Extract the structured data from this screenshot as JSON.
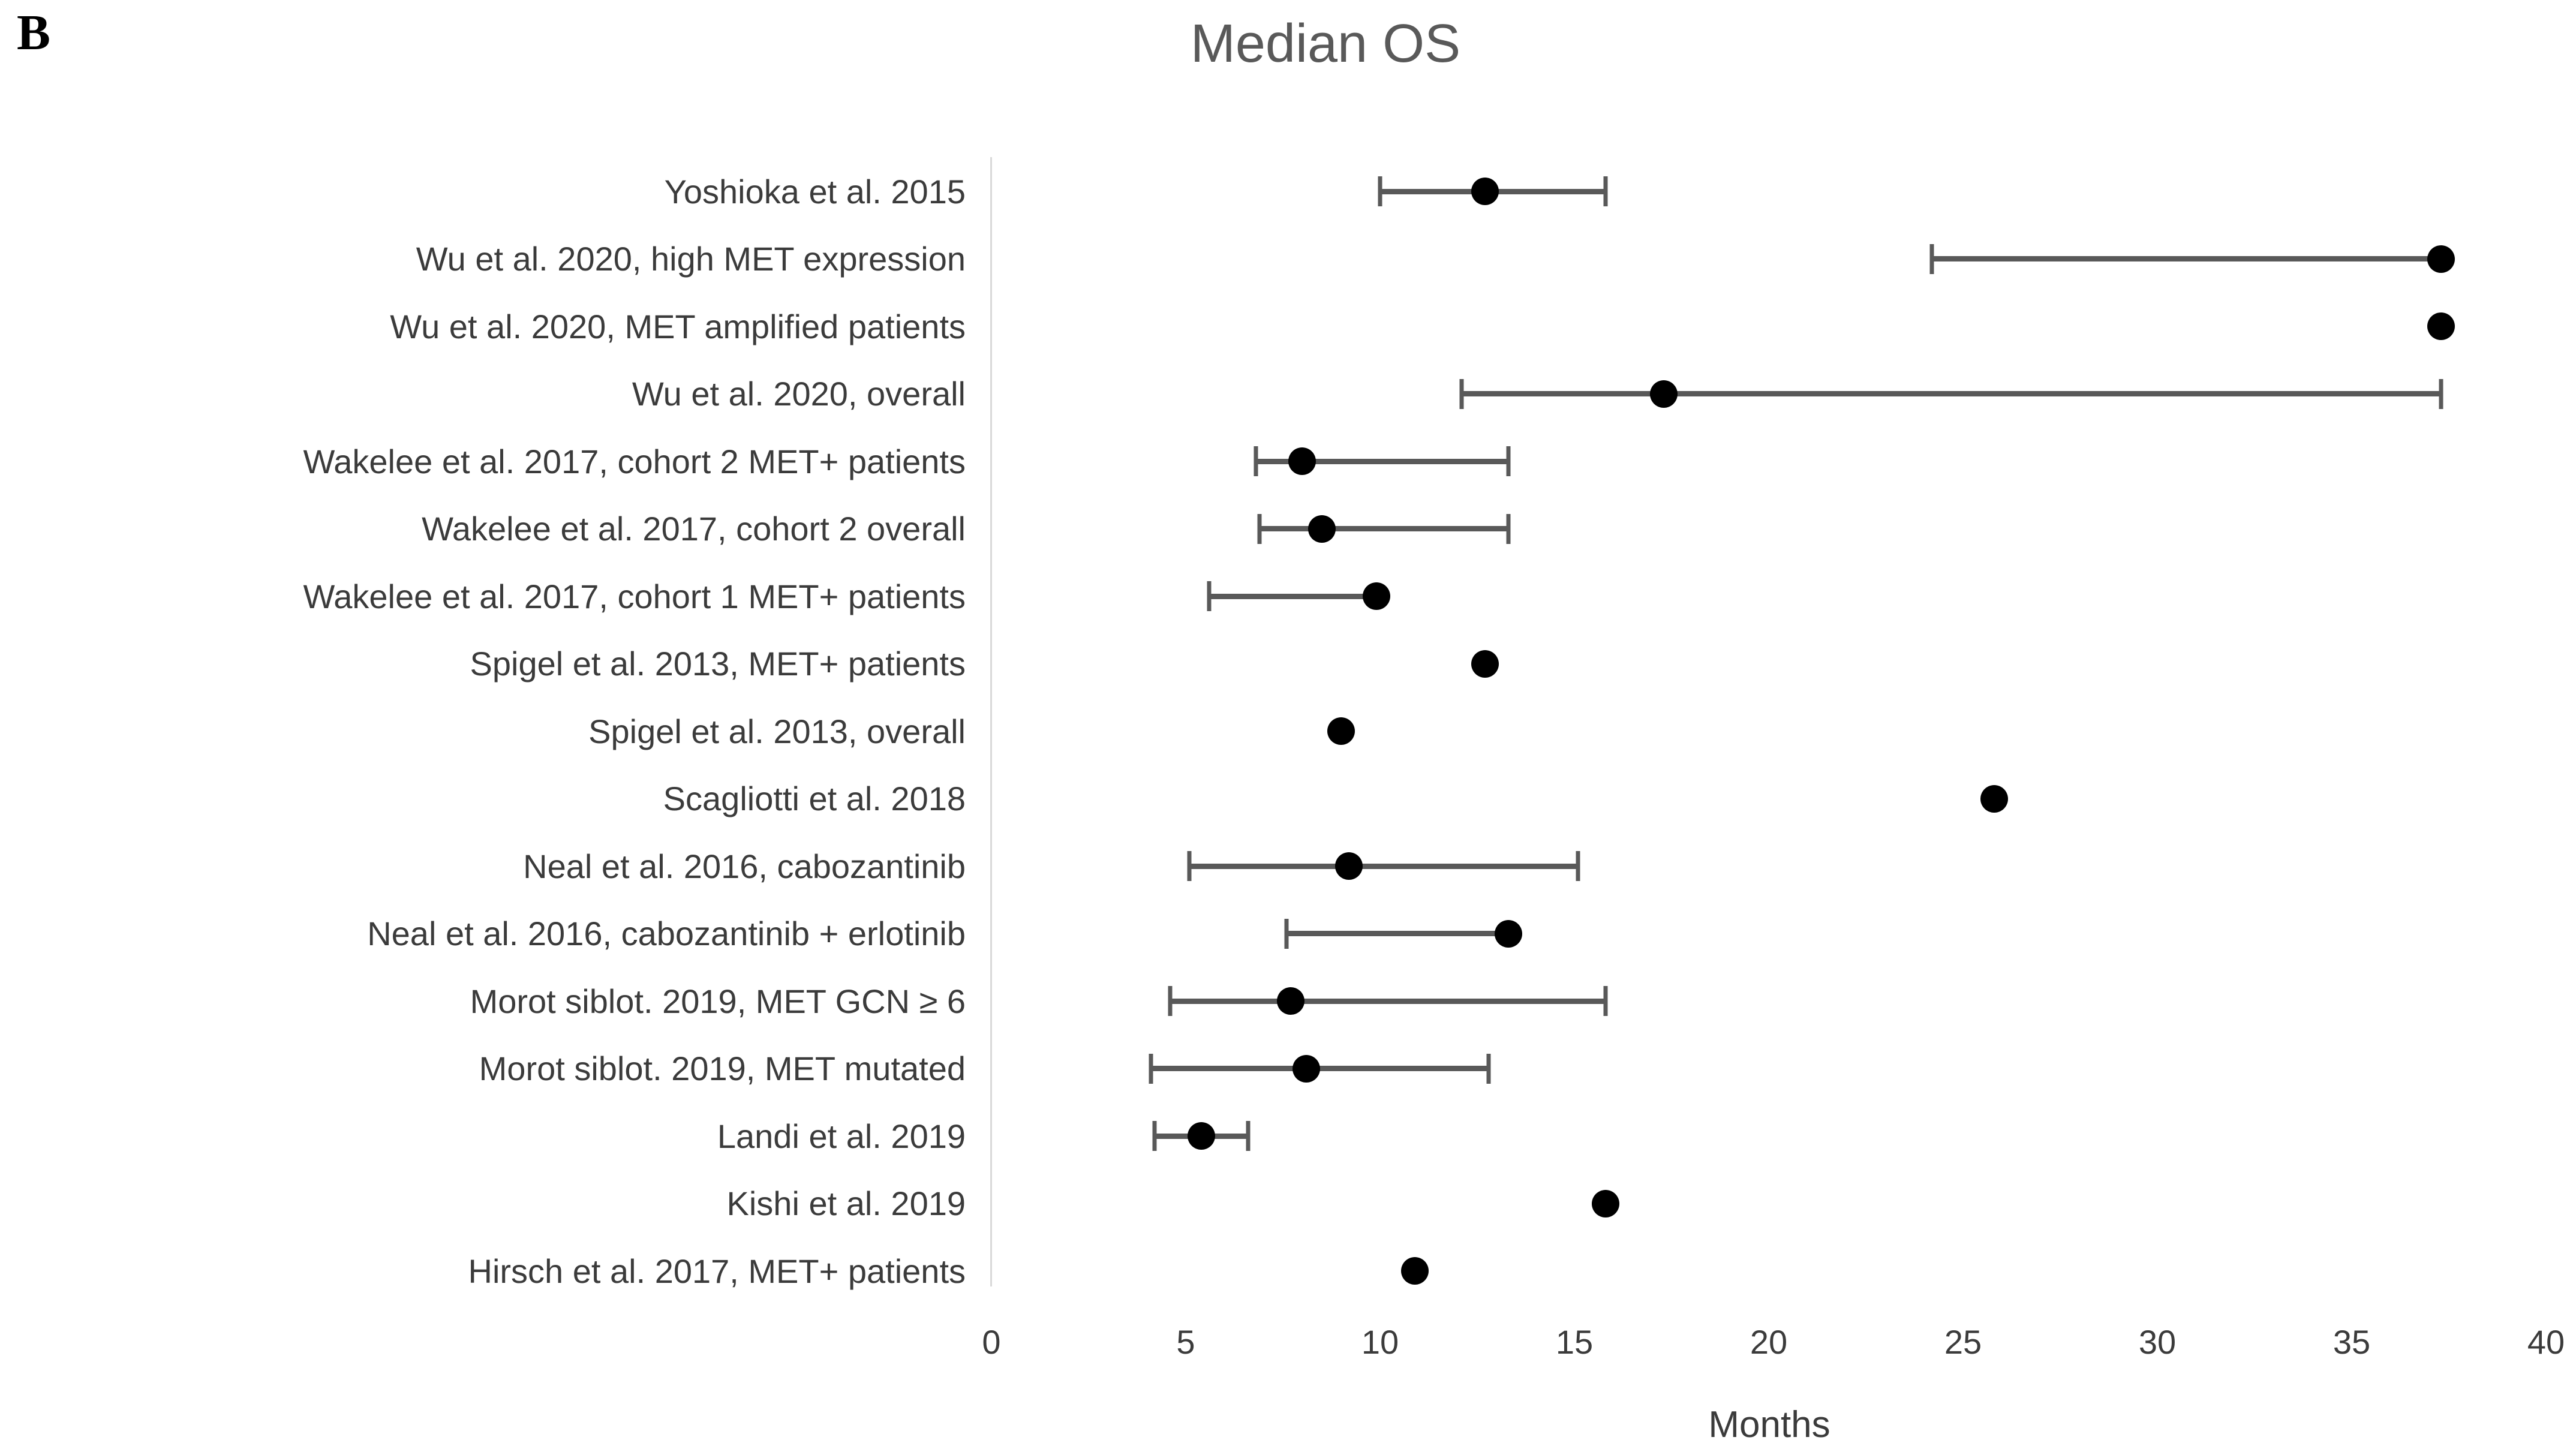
{
  "panel_label": "B",
  "title": "Median OS",
  "x_axis": {
    "label": "Months",
    "min": 0,
    "max": 40,
    "tick_interval": 5,
    "ticks": [
      0,
      5,
      10,
      15,
      20,
      25,
      30,
      35,
      40
    ]
  },
  "colors": {
    "background": "#ffffff",
    "marker": "#000000",
    "error_bar": "#595959",
    "axis_line": "#d9d9d9",
    "title_text": "#595959",
    "label_text": "#3b3b3b"
  },
  "chart_data": {
    "type": "scatter",
    "subtype": "dot-with-error-bars-forest-plot",
    "title": "Median OS",
    "xlabel": "Months",
    "xlim": [
      0,
      40
    ],
    "x_ticks": [
      0,
      5,
      10,
      15,
      20,
      25,
      30,
      35,
      40
    ],
    "grid": false,
    "legend": false,
    "value_meaning": "median overall survival in months; dot = median, horizontal whiskers = confidence interval when shown",
    "studies": [
      {
        "label": "Yoshioka et al. 2015",
        "value": 12.7,
        "ci_low": 10.0,
        "ci_high": 15.8
      },
      {
        "label": "Wu et al. 2020, high MET expression",
        "value": 37.3,
        "ci_low": 24.2,
        "ci_high": null
      },
      {
        "label": "Wu et al. 2020, MET amplified patients",
        "value": 37.3,
        "ci_low": null,
        "ci_high": null
      },
      {
        "label": "Wu et al. 2020, overall",
        "value": 17.3,
        "ci_low": 12.1,
        "ci_high": 37.3
      },
      {
        "label": "Wakelee et al. 2017, cohort 2 MET+ patients",
        "value": 8.0,
        "ci_low": 6.8,
        "ci_high": 13.3
      },
      {
        "label": "Wakelee et al. 2017, cohort 2 overall",
        "value": 8.5,
        "ci_low": 6.9,
        "ci_high": 13.3
      },
      {
        "label": "Wakelee et al. 2017, cohort 1 MET+ patients",
        "value": 9.9,
        "ci_low": 5.6,
        "ci_high": null
      },
      {
        "label": "Spigel et al. 2013, MET+ patients",
        "value": 12.7,
        "ci_low": null,
        "ci_high": null
      },
      {
        "label": "Spigel et al. 2013, overall",
        "value": 9.0,
        "ci_low": null,
        "ci_high": null
      },
      {
        "label": "Scagliotti et al. 2018",
        "value": 25.8,
        "ci_low": null,
        "ci_high": null
      },
      {
        "label": "Neal et al. 2016, cabozantinib",
        "value": 9.2,
        "ci_low": 5.1,
        "ci_high": 15.1
      },
      {
        "label": "Neal et al. 2016, cabozantinib + erlotinib",
        "value": 13.3,
        "ci_low": 7.6,
        "ci_high": null
      },
      {
        "label": "Morot siblot. 2019, MET GCN ≥ 6",
        "value": 7.7,
        "ci_low": 4.6,
        "ci_high": 15.8
      },
      {
        "label": "Morot siblot. 2019, MET mutated",
        "value": 8.1,
        "ci_low": 4.1,
        "ci_high": 12.8
      },
      {
        "label": "Landi et al. 2019",
        "value": 5.4,
        "ci_low": 4.2,
        "ci_high": 6.6
      },
      {
        "label": "Kishi et al. 2019",
        "value": 15.8,
        "ci_low": null,
        "ci_high": null
      },
      {
        "label": "Hirsch et al. 2017, MET+ patients",
        "value": 10.9,
        "ci_low": null,
        "ci_high": null
      }
    ]
  }
}
